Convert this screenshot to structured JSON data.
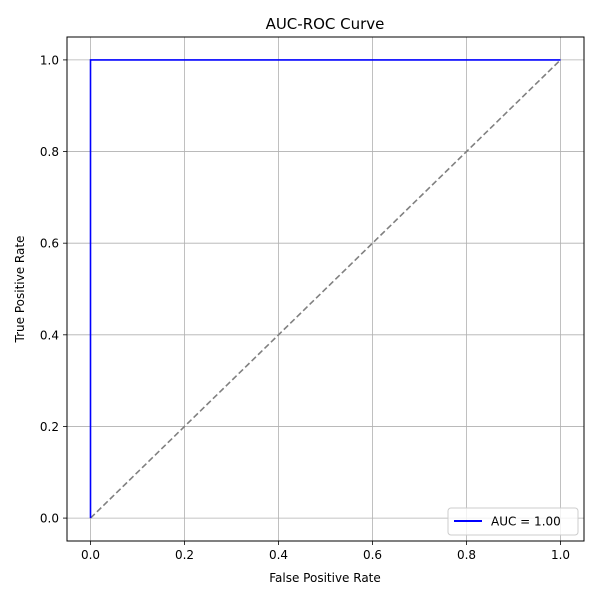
{
  "chart_data": {
    "type": "line",
    "title": "AUC-ROC Curve",
    "xlabel": "False Positive Rate",
    "ylabel": "True Positive Rate",
    "xlim": [
      -0.05,
      1.05
    ],
    "ylim": [
      -0.05,
      1.05
    ],
    "xticks": [
      0.0,
      0.2,
      0.4,
      0.6,
      0.8,
      1.0
    ],
    "yticks": [
      0.0,
      0.2,
      0.4,
      0.6,
      0.8,
      1.0
    ],
    "tick_labels_x": [
      "0.0",
      "0.2",
      "0.4",
      "0.6",
      "0.8",
      "1.0"
    ],
    "tick_labels_y": [
      "0.0",
      "0.2",
      "0.4",
      "0.6",
      "0.8",
      "1.0"
    ],
    "grid": true,
    "legend_position": "lower-right",
    "series": [
      {
        "name": "AUC = 1.00",
        "color": "#0000ff",
        "line_style": "solid",
        "x": [
          0.0,
          0.0,
          1.0
        ],
        "y": [
          0.0,
          1.0,
          1.0
        ]
      }
    ],
    "reference_line": {
      "color": "#808080",
      "line_style": "dashed",
      "x": [
        0.0,
        1.0
      ],
      "y": [
        0.0,
        1.0
      ]
    }
  }
}
